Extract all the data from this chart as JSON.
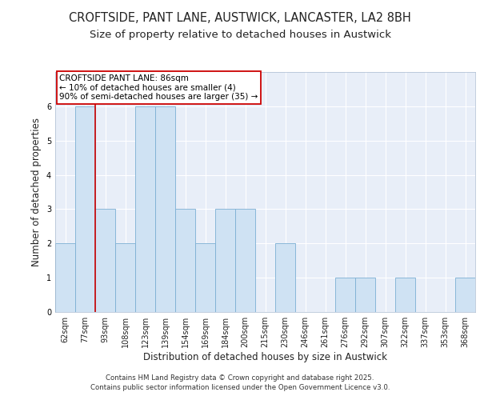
{
  "title": "CROFTSIDE, PANT LANE, AUSTWICK, LANCASTER, LA2 8BH",
  "subtitle": "Size of property relative to detached houses in Austwick",
  "xlabel": "Distribution of detached houses by size in Austwick",
  "ylabel": "Number of detached properties",
  "categories": [
    "62sqm",
    "77sqm",
    "93sqm",
    "108sqm",
    "123sqm",
    "139sqm",
    "154sqm",
    "169sqm",
    "184sqm",
    "200sqm",
    "215sqm",
    "230sqm",
    "246sqm",
    "261sqm",
    "276sqm",
    "292sqm",
    "307sqm",
    "322sqm",
    "337sqm",
    "353sqm",
    "368sqm"
  ],
  "values": [
    2,
    6,
    3,
    2,
    6,
    6,
    3,
    2,
    3,
    3,
    0,
    2,
    0,
    0,
    1,
    1,
    0,
    1,
    0,
    0,
    1
  ],
  "bar_color": "#cfe2f3",
  "bar_edge_color": "#7bafd4",
  "vline_color": "#cc0000",
  "vline_pos": 1.5,
  "annotation_text": "CROFTSIDE PANT LANE: 86sqm\n← 10% of detached houses are smaller (4)\n90% of semi-detached houses are larger (35) →",
  "annotation_box_color": "#ffffff",
  "annotation_box_edge": "#cc0000",
  "ylim": [
    0,
    7
  ],
  "yticks": [
    0,
    1,
    2,
    3,
    4,
    5,
    6
  ],
  "background_color": "#e8eef8",
  "grid_color": "#ffffff",
  "footer_line1": "Contains HM Land Registry data © Crown copyright and database right 2025.",
  "footer_line2": "Contains public sector information licensed under the Open Government Licence v3.0.",
  "title_fontsize": 10.5,
  "subtitle_fontsize": 9.5,
  "tick_fontsize": 7,
  "ylabel_fontsize": 8.5,
  "xlabel_fontsize": 8.5,
  "annotation_fontsize": 7.5
}
